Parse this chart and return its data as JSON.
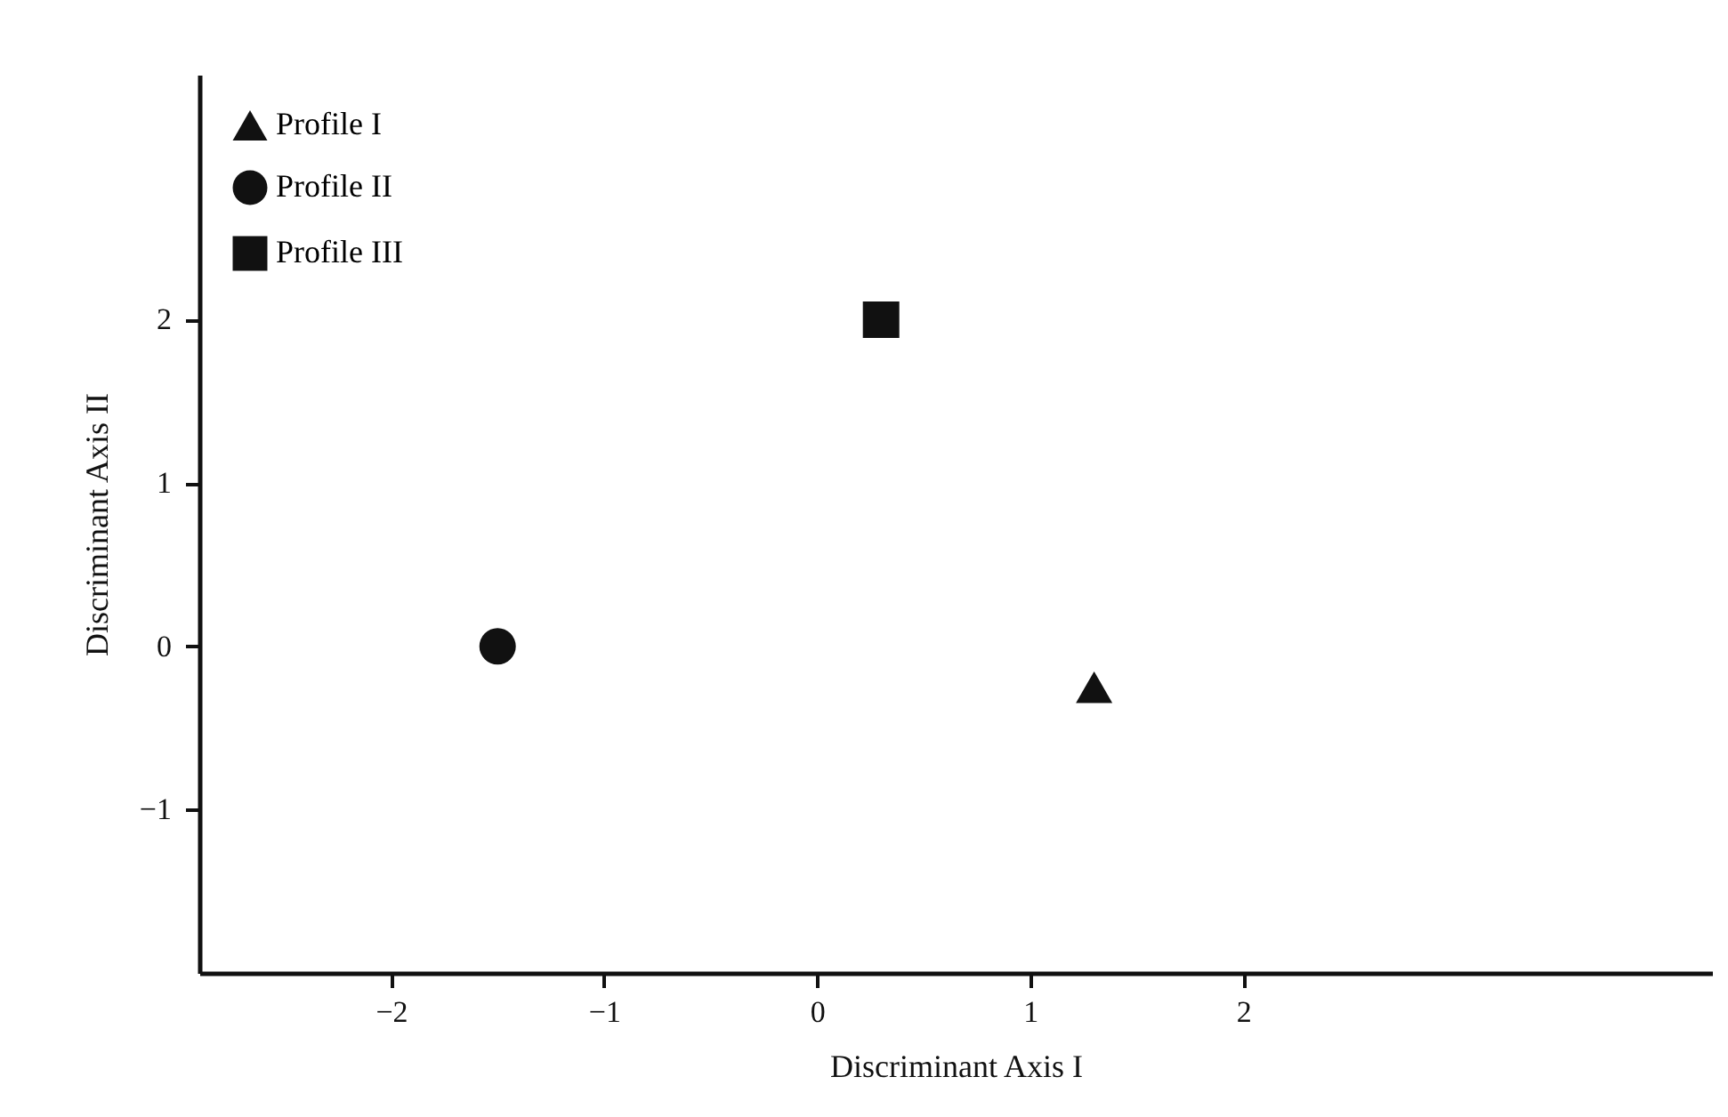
{
  "chart_data": {
    "type": "scatter",
    "xlabel": "Discriminant Axis I",
    "ylabel": "Discriminant Axis II",
    "xlim": [
      -2.9,
      4.2
    ],
    "ylim": [
      -2,
      3.5
    ],
    "xticks": [
      -2,
      -1,
      0,
      1,
      2
    ],
    "yticks": [
      -1,
      0,
      1,
      2
    ],
    "grid": false,
    "legend": "top left",
    "series": [
      {
        "name": "Profile I",
        "color": "#111111",
        "marker": "triangle",
        "x": [
          1.3
        ],
        "values": [
          -0.25
        ]
      },
      {
        "name": "Profile II",
        "color": "#111111",
        "marker": "circle",
        "x": [
          -1.5
        ],
        "values": [
          0
        ]
      },
      {
        "name": "Profile III",
        "color": "#111111",
        "marker": "square",
        "x": [
          0.3
        ],
        "values": [
          2
        ]
      }
    ]
  }
}
